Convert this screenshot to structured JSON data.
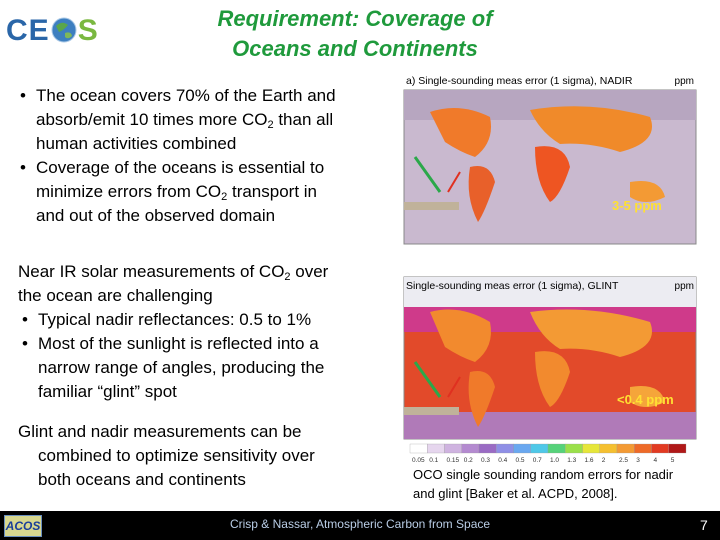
{
  "header": {
    "logo": {
      "left": "CE",
      "right": "S"
    },
    "title_lines": [
      "Requirement: Coverage of",
      "Oceans and Continents"
    ]
  },
  "body": {
    "blocks": [
      {
        "bullet": true,
        "lines": [
          [
            "The ocean covers 70% of the Earth and"
          ],
          [
            "absorb/emit 10 times more CO",
            {
              "sub": "2"
            },
            " than all"
          ],
          [
            "human activities combined"
          ]
        ]
      },
      {
        "bullet": true,
        "lines": [
          [
            "Coverage of the oceans is essential to"
          ],
          [
            "minimize errors from CO",
            {
              "sub": "2"
            },
            " transport in"
          ],
          [
            "and out of the observed domain"
          ]
        ]
      },
      {
        "bullet": false,
        "lines": [
          [
            "Near IR solar measurements of CO",
            {
              "sub": "2"
            },
            " over"
          ],
          [
            "the ocean are challenging"
          ]
        ]
      },
      {
        "bullet": true,
        "lines": [
          [
            "Typical nadir reflectances: 0.5 to 1%"
          ]
        ]
      },
      {
        "bullet": true,
        "lines": [
          [
            "Most of the sunlight is reflected into a"
          ],
          [
            "narrow range of angles, producing the"
          ],
          [
            "familiar “glint” spot"
          ]
        ]
      },
      {
        "bullet": false,
        "lines": [
          [
            "Glint and nadir measurements can be"
          ],
          [
            "combined to optimize sensitivity over"
          ],
          [
            "both oceans and continents"
          ]
        ]
      }
    ]
  },
  "figure": {
    "maps": [
      {
        "title": "a) Single-sounding meas error (1 sigma), NADIR",
        "unit": "ppm",
        "callout": "3-5 ppm"
      },
      {
        "title": "Single-sounding meas error (1 sigma), GLINT",
        "unit": "ppm",
        "callout": "<0.4 ppm"
      }
    ],
    "colorbar_labels": [
      "0.05",
      "0.1",
      "0.15",
      "0.2",
      "0.3",
      "0.4",
      "0.5",
      "0.7",
      "1.0",
      "1.3",
      "1.6",
      "2",
      "2.5",
      "3",
      "4",
      "5"
    ],
    "caption_lines": [
      "OCO single sounding random errors for nadir",
      "and glint [Baker et al. ACPD, 2008]."
    ]
  },
  "footer": {
    "logo": "ACOS",
    "text": "Crisp & Nassar,  Atmospheric Carbon from Space",
    "page": "7"
  }
}
